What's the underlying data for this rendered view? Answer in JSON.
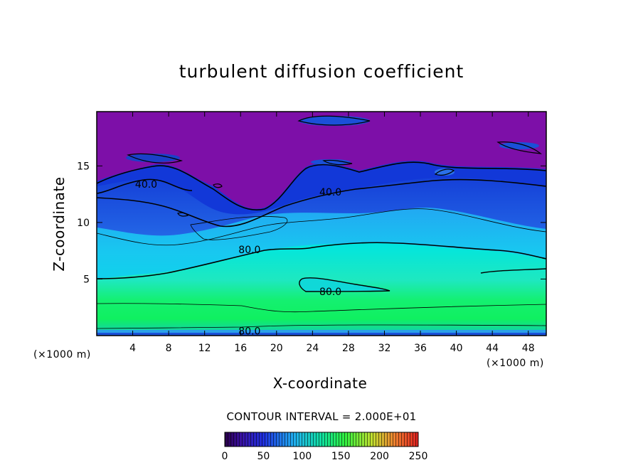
{
  "chart_data": {
    "type": "heatmap",
    "title": "turbulent diffusion coefficient",
    "xlabel": "X-coordinate",
    "ylabel": "Z-coordinate",
    "x_unit": "(×1000 m)",
    "x_ticks": [
      4,
      8,
      12,
      16,
      20,
      24,
      28,
      32,
      36,
      40,
      44,
      48
    ],
    "y_ticks": [
      5,
      10,
      15
    ],
    "xlim": [
      0,
      50
    ],
    "ylim": [
      0,
      19.8
    ],
    "contour_interval_text": "CONTOUR INTERVAL = 2.000E+01",
    "contour_interval": 20,
    "contour_labels": [
      {
        "text": "40.0",
        "x": 5.5,
        "y": 13.4
      },
      {
        "text": "40.0",
        "x": 26,
        "y": 12.7
      },
      {
        "text": "80.0",
        "x": 17,
        "y": 7.6
      },
      {
        "text": "80.0",
        "x": 26,
        "y": 3.9
      },
      {
        "text": "80.0",
        "x": 17,
        "y": 0.4
      }
    ],
    "colorbar": {
      "min": 0,
      "max": 250,
      "ticks": [
        "0",
        "50",
        "100",
        "150",
        "200",
        "250"
      ]
    },
    "colors": {
      "background_top": "#7d0fa8",
      "deep_blue": "#1238d8",
      "mid_blue": "#2f8cf0",
      "cyan": "#00e5e0",
      "green": "#14f060"
    }
  }
}
